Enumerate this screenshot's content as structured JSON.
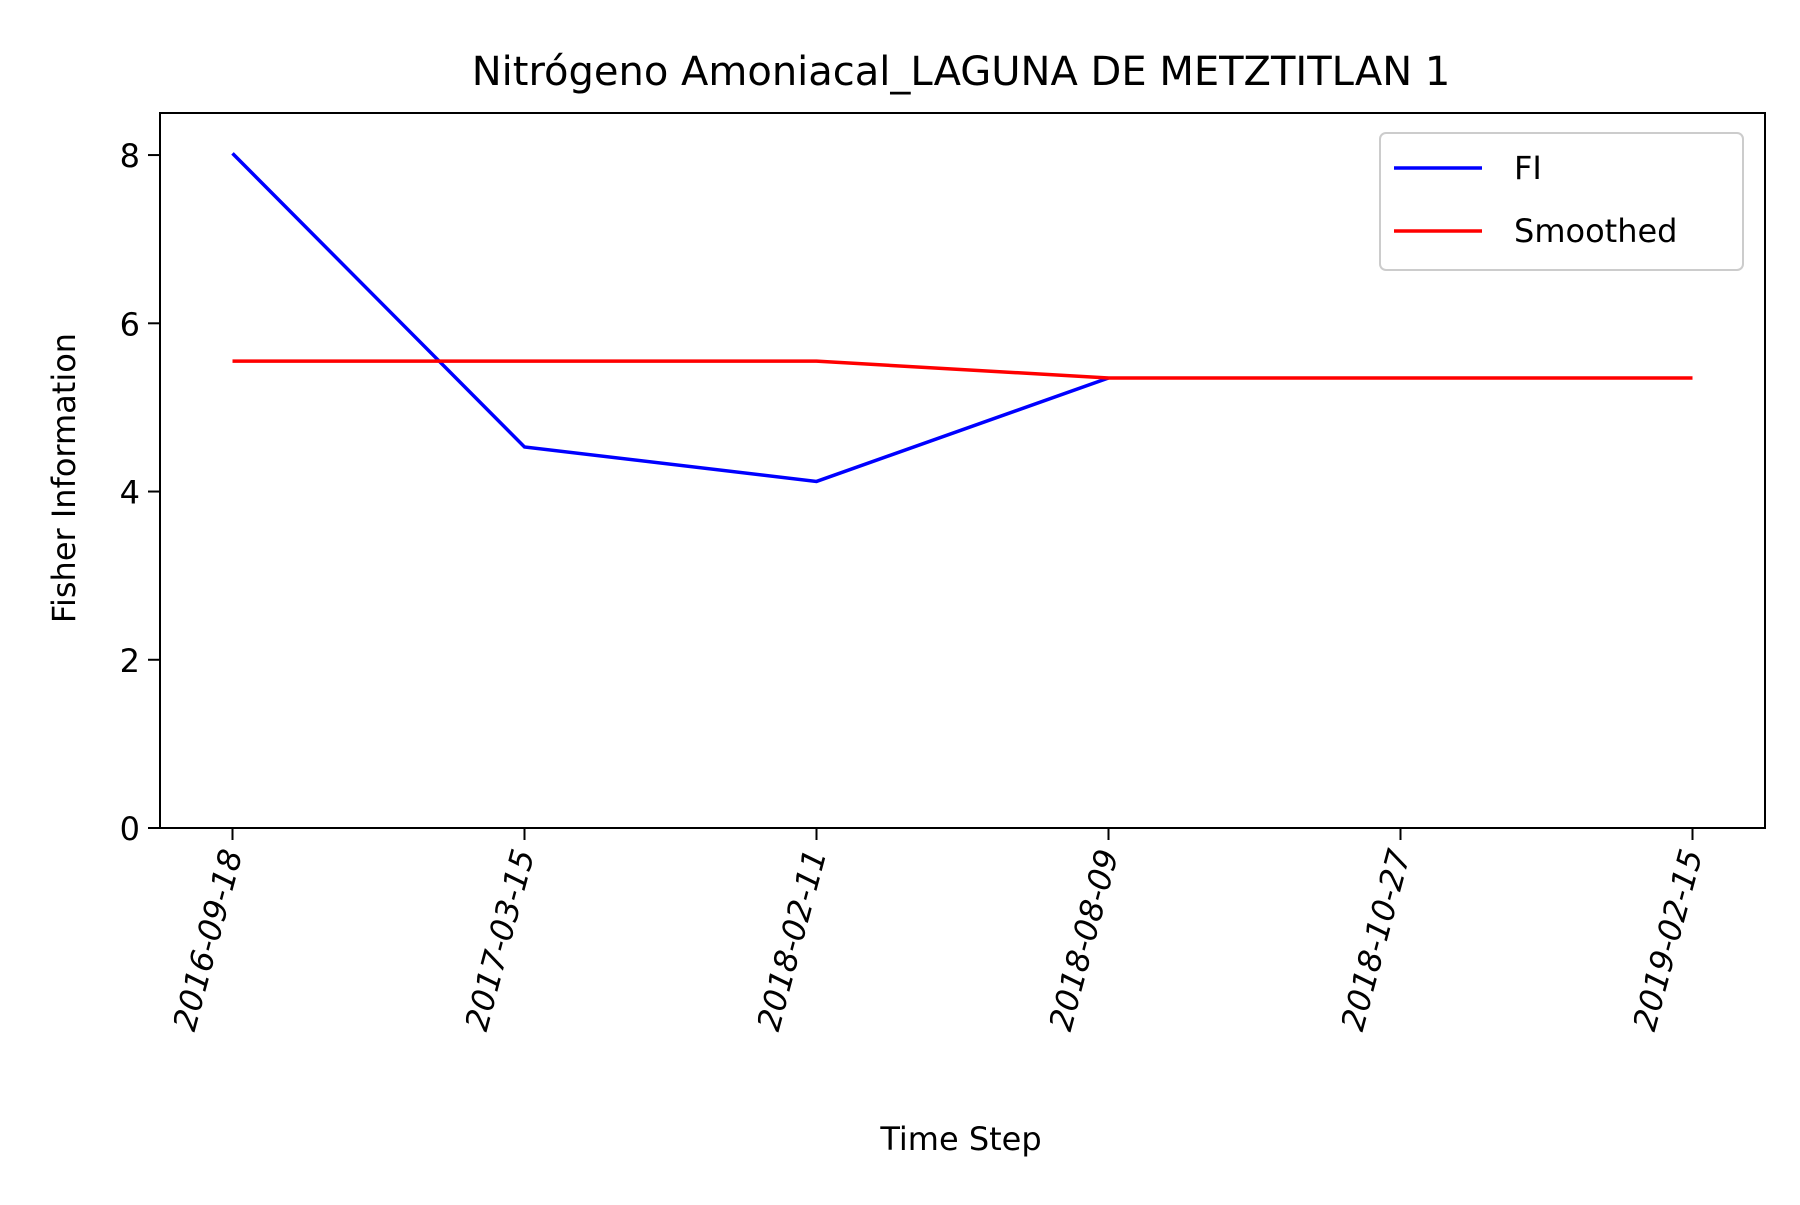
{
  "chart_data": {
    "type": "line",
    "title": "Nitrógeno Amoniacal_LAGUNA DE METZTITLAN 1",
    "xlabel": "Time Step",
    "ylabel": "Fisher Information",
    "categories": [
      "2016-09-18",
      "2017-03-15",
      "2018-02-11",
      "2018-08-09",
      "2018-10-27",
      "2019-02-15"
    ],
    "ylim": [
      0,
      8.5
    ],
    "yticks": [
      0,
      2,
      4,
      6,
      8
    ],
    "grid": false,
    "legend_position": "upper right",
    "series": [
      {
        "name": "FI",
        "color": "#0000ff",
        "values": [
          8.02,
          4.53,
          4.12,
          5.35,
          null,
          null
        ]
      },
      {
        "name": "Smoothed",
        "color": "#ff0000",
        "values": [
          5.55,
          5.55,
          5.55,
          5.35,
          5.35,
          5.35
        ]
      }
    ]
  }
}
